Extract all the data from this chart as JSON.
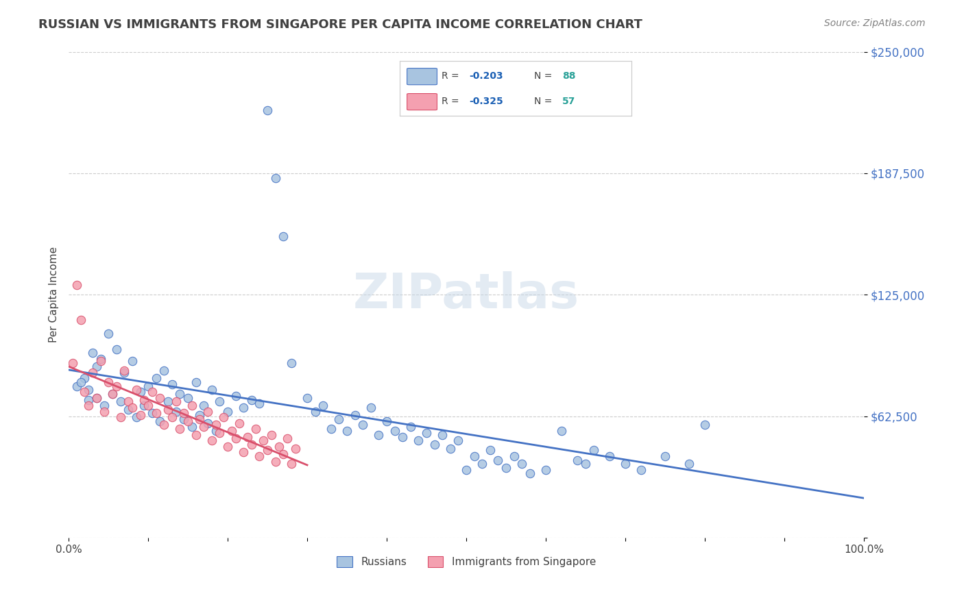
{
  "title": "RUSSIAN VS IMMIGRANTS FROM SINGAPORE PER CAPITA INCOME CORRELATION CHART",
  "source": "Source: ZipAtlas.com",
  "xlabel": "",
  "ylabel": "Per Capita Income",
  "xlim": [
    0,
    1.0
  ],
  "ylim": [
    0,
    250000
  ],
  "yticks": [
    0,
    62500,
    125000,
    187500,
    250000
  ],
  "ytick_labels": [
    "",
    "$62,500",
    "$125,000",
    "$187,500",
    "$250,000"
  ],
  "xticks": [
    0,
    0.1,
    0.2,
    0.3,
    0.4,
    0.5,
    0.6,
    0.7,
    0.8,
    0.9,
    1.0
  ],
  "xtick_labels": [
    "0.0%",
    "",
    "",
    "",
    "",
    "",
    "",
    "",
    "",
    "",
    "100.0%"
  ],
  "russian_R": -0.203,
  "russian_N": 88,
  "singapore_R": -0.325,
  "singapore_N": 57,
  "russian_color": "#a8c4e0",
  "singapore_color": "#f4a0b0",
  "russian_line_color": "#4472c4",
  "singapore_line_color": "#d94f6b",
  "title_color": "#404040",
  "source_color": "#808080",
  "axis_label_color": "#404040",
  "tick_label_color": "#4472c4",
  "watermark_color": "#c8d8e8",
  "legend_r_color": "#1a5fb4",
  "legend_n_color": "#2aa198",
  "background_color": "#ffffff",
  "russians_scatter_x": [
    0.02,
    0.03,
    0.01,
    0.025,
    0.035,
    0.04,
    0.05,
    0.06,
    0.07,
    0.08,
    0.09,
    0.1,
    0.11,
    0.12,
    0.13,
    0.14,
    0.15,
    0.16,
    0.17,
    0.18,
    0.19,
    0.2,
    0.21,
    0.22,
    0.23,
    0.24,
    0.25,
    0.26,
    0.27,
    0.28,
    0.3,
    0.31,
    0.32,
    0.33,
    0.34,
    0.35,
    0.36,
    0.37,
    0.38,
    0.39,
    0.4,
    0.41,
    0.42,
    0.43,
    0.44,
    0.45,
    0.46,
    0.47,
    0.48,
    0.49,
    0.5,
    0.51,
    0.52,
    0.53,
    0.54,
    0.55,
    0.56,
    0.57,
    0.58,
    0.6,
    0.62,
    0.64,
    0.65,
    0.66,
    0.68,
    0.7,
    0.72,
    0.75,
    0.78,
    0.8,
    0.015,
    0.025,
    0.035,
    0.045,
    0.055,
    0.065,
    0.075,
    0.085,
    0.095,
    0.105,
    0.115,
    0.125,
    0.135,
    0.145,
    0.155,
    0.165,
    0.175,
    0.185
  ],
  "russians_scatter_y": [
    82000,
    95000,
    78000,
    71000,
    88000,
    92000,
    105000,
    97000,
    85000,
    91000,
    75000,
    78000,
    82000,
    86000,
    79000,
    74000,
    72000,
    80000,
    68000,
    76000,
    70000,
    65000,
    73000,
    67000,
    71000,
    69000,
    220000,
    185000,
    155000,
    90000,
    72000,
    65000,
    68000,
    56000,
    61000,
    55000,
    63000,
    58000,
    67000,
    53000,
    60000,
    55000,
    52000,
    57000,
    50000,
    54000,
    48000,
    53000,
    46000,
    50000,
    35000,
    42000,
    38000,
    45000,
    40000,
    36000,
    42000,
    38000,
    33000,
    35000,
    55000,
    40000,
    38000,
    45000,
    42000,
    38000,
    35000,
    42000,
    38000,
    58000,
    80000,
    76000,
    72000,
    68000,
    74000,
    70000,
    66000,
    62000,
    68000,
    64000,
    60000,
    70000,
    65000,
    61000,
    57000,
    63000,
    59000,
    55000
  ],
  "singapore_scatter_x": [
    0.005,
    0.01,
    0.015,
    0.02,
    0.025,
    0.03,
    0.035,
    0.04,
    0.045,
    0.05,
    0.055,
    0.06,
    0.065,
    0.07,
    0.075,
    0.08,
    0.085,
    0.09,
    0.095,
    0.1,
    0.105,
    0.11,
    0.115,
    0.12,
    0.125,
    0.13,
    0.135,
    0.14,
    0.145,
    0.15,
    0.155,
    0.16,
    0.165,
    0.17,
    0.175,
    0.18,
    0.185,
    0.19,
    0.195,
    0.2,
    0.205,
    0.21,
    0.215,
    0.22,
    0.225,
    0.23,
    0.235,
    0.24,
    0.245,
    0.25,
    0.255,
    0.26,
    0.265,
    0.27,
    0.275,
    0.28,
    0.285
  ],
  "singapore_scatter_y": [
    90000,
    130000,
    112000,
    75000,
    68000,
    85000,
    72000,
    91000,
    65000,
    80000,
    74000,
    78000,
    62000,
    86000,
    70000,
    67000,
    76000,
    63000,
    71000,
    68000,
    75000,
    64000,
    72000,
    58000,
    66000,
    62000,
    70000,
    56000,
    64000,
    60000,
    68000,
    53000,
    61000,
    57000,
    65000,
    50000,
    58000,
    54000,
    62000,
    47000,
    55000,
    51000,
    59000,
    44000,
    52000,
    48000,
    56000,
    42000,
    50000,
    45000,
    53000,
    39000,
    47000,
    43000,
    51000,
    38000,
    46000
  ]
}
